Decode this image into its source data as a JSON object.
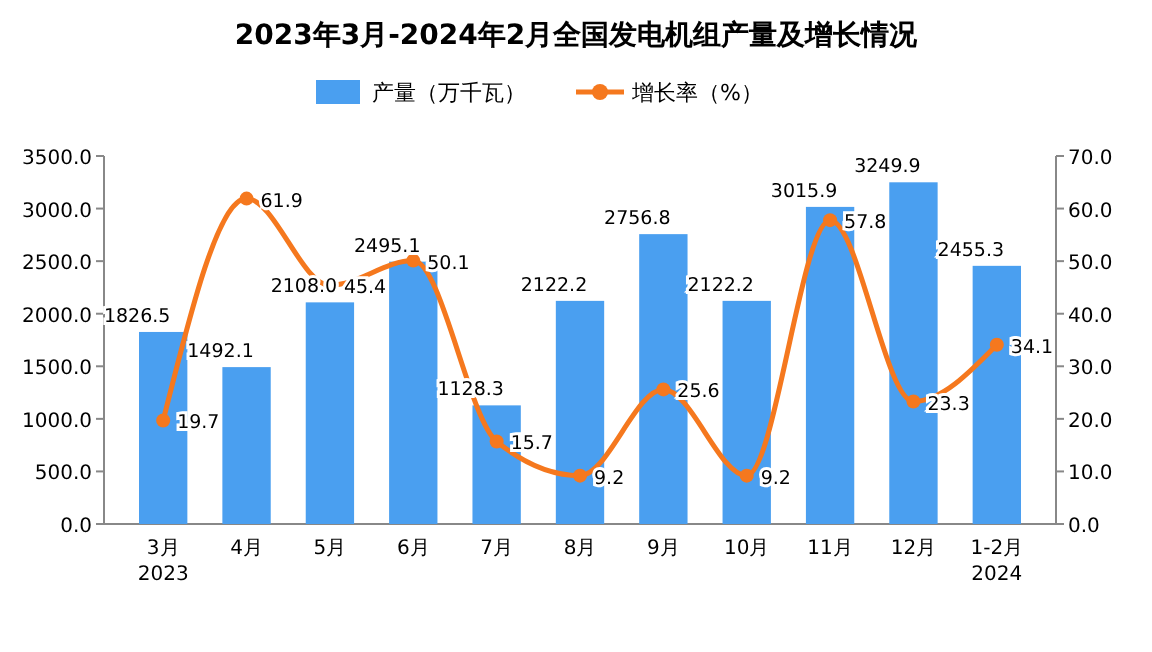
{
  "chart_data": {
    "type": "bar",
    "title": "2023年3月-2024年2月全国发电机组产量及增长情况",
    "categories": [
      "3月\n2023",
      "4月",
      "5月",
      "6月",
      "7月",
      "8月",
      "9月",
      "10月",
      "11月",
      "12月",
      "1-2月\n2024"
    ],
    "series": [
      {
        "name": "产量（万千瓦）",
        "color": "#4a9ff0",
        "values": [
          1826.5,
          1492.1,
          2108.0,
          2495.1,
          1128.3,
          2122.2,
          2756.8,
          2122.2,
          3015.9,
          3249.9,
          2455.3
        ],
        "value_labels": [
          "1826.5",
          "1492.1",
          "2108.0",
          "2495.1",
          "1128.3",
          "2122.2",
          "2756.8",
          "2122.2",
          "3015.9",
          "3249.9",
          "2455.3"
        ]
      },
      {
        "name": "增长率（%）",
        "type": "line",
        "axis": "y2",
        "color": "#f5781e",
        "values": [
          19.7,
          61.9,
          45.4,
          50.1,
          15.7,
          9.2,
          25.6,
          9.2,
          57.8,
          23.3,
          34.1
        ],
        "value_labels": [
          "19.7",
          "61.9",
          "45.4",
          "50.1",
          "15.7",
          "9.2",
          "25.6",
          "9.2",
          "57.8",
          "23.3",
          "34.1"
        ]
      }
    ],
    "ylim": [
      0,
      3500
    ],
    "yticks": [
      {
        "value": 0,
        "label": "0.0"
      },
      {
        "value": 500,
        "label": "500.0"
      },
      {
        "value": 1000,
        "label": "1000.0"
      },
      {
        "value": 1500,
        "label": "1500.0"
      },
      {
        "value": 2000,
        "label": "2000.0"
      },
      {
        "value": 2500,
        "label": "2500.0"
      },
      {
        "value": 3000,
        "label": "3000.0"
      },
      {
        "value": 3500,
        "label": "3500.0"
      }
    ],
    "y2lim": [
      0,
      70
    ],
    "y2ticks": [
      {
        "value": 0,
        "label": "0.0"
      },
      {
        "value": 10,
        "label": "10.0"
      },
      {
        "value": 20,
        "label": "20.0"
      },
      {
        "value": 30,
        "label": "30.0"
      },
      {
        "value": 40,
        "label": "40.0"
      },
      {
        "value": 50,
        "label": "50.0"
      },
      {
        "value": 60,
        "label": "60.0"
      },
      {
        "value": 70,
        "label": "70.0"
      }
    ],
    "legend": "top",
    "marker": "circle",
    "line_style": "solid"
  }
}
